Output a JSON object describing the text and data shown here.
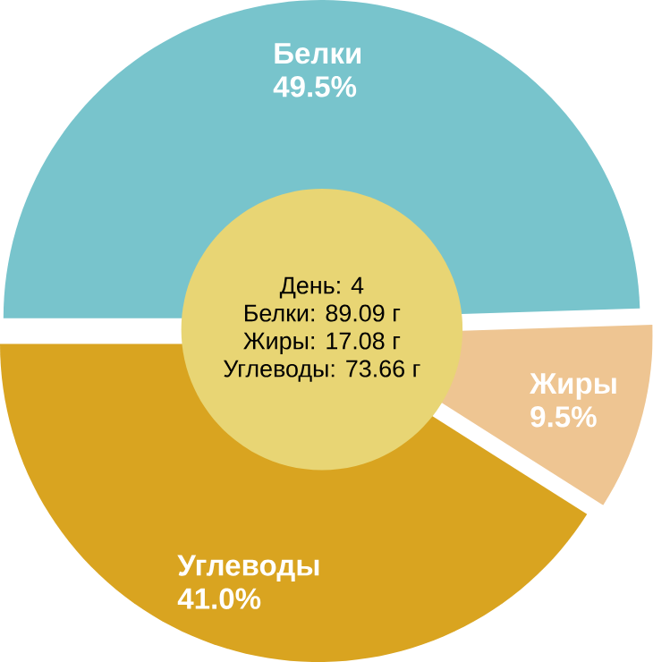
{
  "chart_data": {
    "type": "pie",
    "categories": [
      "Белки",
      "Жиры",
      "Углеводы"
    ],
    "values": [
      49.5,
      9.5,
      41.0
    ],
    "value_labels": [
      "49.5%",
      "9.5%",
      "41.0%"
    ],
    "colors": [
      "#78c4cc",
      "#eec592",
      "#d9a420"
    ],
    "annotations": [
      "День: 4",
      "Белки: 89.09 г",
      "Жиры: 17.08 г",
      "Углеводы: 73.66 г"
    ]
  }
}
